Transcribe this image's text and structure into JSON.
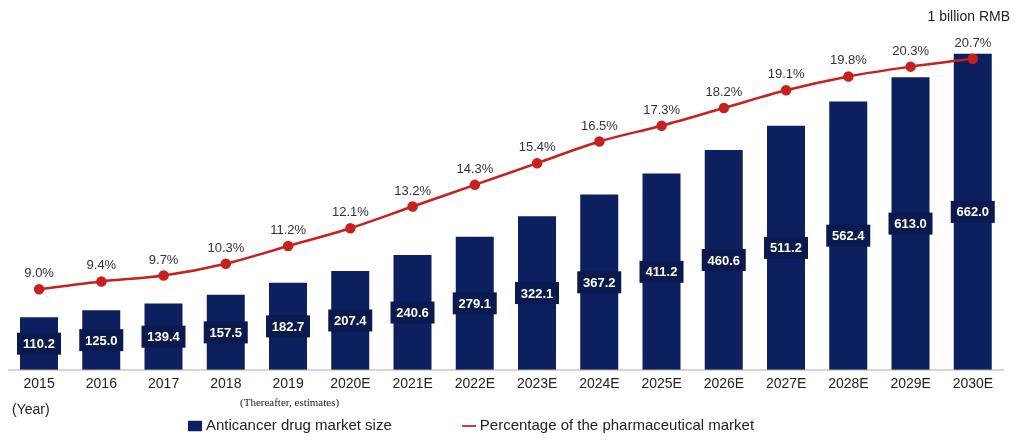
{
  "chart_data": {
    "type": "bar",
    "ylabel": "1 billion RMB",
    "xlabel": "(Year)",
    "categories": [
      "2015",
      "2016",
      "2017",
      "2018",
      "2019",
      "2020E",
      "2021E",
      "2022E",
      "2023E",
      "2024E",
      "2025E",
      "2026E",
      "2027E",
      "2028E",
      "2029E",
      "2030E"
    ],
    "series": [
      {
        "name": "Anticancer drug market size",
        "color": "#0c1f5e",
        "values": [
          110.2,
          125.0,
          139.4,
          157.5,
          182.7,
          207.4,
          240.6,
          279.1,
          322.1,
          367.2,
          411.2,
          460.6,
          511.2,
          562.4,
          613.0,
          662.0
        ],
        "value_labels": [
          "110.2",
          "125.0",
          "139.4",
          "157.5",
          "182.7",
          "207.4",
          "240.6",
          "279.1",
          "322.1",
          "367.2",
          "411.2",
          "460.6",
          "511.2",
          "562.4",
          "613.0",
          "662.0"
        ]
      },
      {
        "name": "Percentage of the pharmaceutical market",
        "type": "line",
        "axis": "y2",
        "color": "#c8201e",
        "marker": "circle",
        "values": [
          9.0,
          9.4,
          9.7,
          10.3,
          11.2,
          12.1,
          13.2,
          14.3,
          15.4,
          16.5,
          17.3,
          18.2,
          19.1,
          19.8,
          20.3,
          20.7
        ],
        "value_labels": [
          "9.0%",
          "9.4%",
          "9.7%",
          "10.3%",
          "11.2%",
          "12.1%",
          "13.2%",
          "14.3%",
          "15.4%",
          "16.5%",
          "17.3%",
          "18.2%",
          "19.1%",
          "19.8%",
          "20.3%",
          "20.7%"
        ]
      }
    ],
    "data_labels": true,
    "legend": "bottom",
    "tick_labels": "x",
    "annotations": [
      "(Thereafter, estimates)"
    ]
  }
}
